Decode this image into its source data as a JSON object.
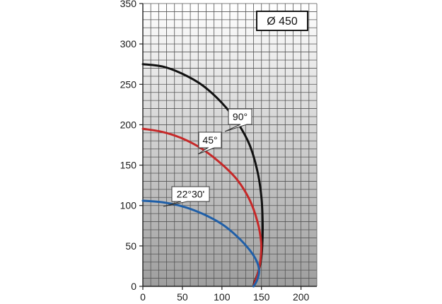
{
  "chart_data": {
    "type": "line",
    "title": "",
    "xlabel": "",
    "ylabel": "",
    "xlim": [
      0,
      220
    ],
    "ylim": [
      0,
      350
    ],
    "x_ticks": [
      0,
      50,
      100,
      150,
      200
    ],
    "y_ticks": [
      0,
      50,
      100,
      150,
      200,
      250,
      300,
      350
    ],
    "grid": true,
    "background": "gray gradient",
    "annotation_box": "Ø 450",
    "series": [
      {
        "name": "90°",
        "color": "#111111",
        "points": [
          [
            0,
            275
          ],
          [
            25,
            272
          ],
          [
            50,
            263
          ],
          [
            75,
            249
          ],
          [
            100,
            227
          ],
          [
            120,
            202
          ],
          [
            135,
            175
          ],
          [
            145,
            142
          ],
          [
            150,
            110
          ],
          [
            151.5,
            78
          ],
          [
            151,
            50
          ],
          [
            149,
            30
          ],
          [
            145,
            15
          ],
          [
            141,
            5
          ],
          [
            140,
            0
          ]
        ]
      },
      {
        "name": "45°",
        "color": "#c62828",
        "points": [
          [
            0,
            195
          ],
          [
            25,
            191
          ],
          [
            50,
            183
          ],
          [
            75,
            170
          ],
          [
            100,
            151
          ],
          [
            120,
            131
          ],
          [
            135,
            107
          ],
          [
            145,
            80
          ],
          [
            149.5,
            55
          ],
          [
            149,
            35
          ],
          [
            146,
            18
          ],
          [
            142,
            6
          ],
          [
            140,
            0
          ]
        ]
      },
      {
        "name": "22°30'",
        "color": "#1f5fa8",
        "points": [
          [
            0,
            106
          ],
          [
            25,
            104
          ],
          [
            50,
            99
          ],
          [
            75,
            90
          ],
          [
            100,
            77
          ],
          [
            120,
            61
          ],
          [
            135,
            45
          ],
          [
            144,
            31
          ],
          [
            147,
            19
          ],
          [
            145,
            9
          ],
          [
            142,
            3
          ],
          [
            140,
            0
          ]
        ]
      }
    ]
  }
}
